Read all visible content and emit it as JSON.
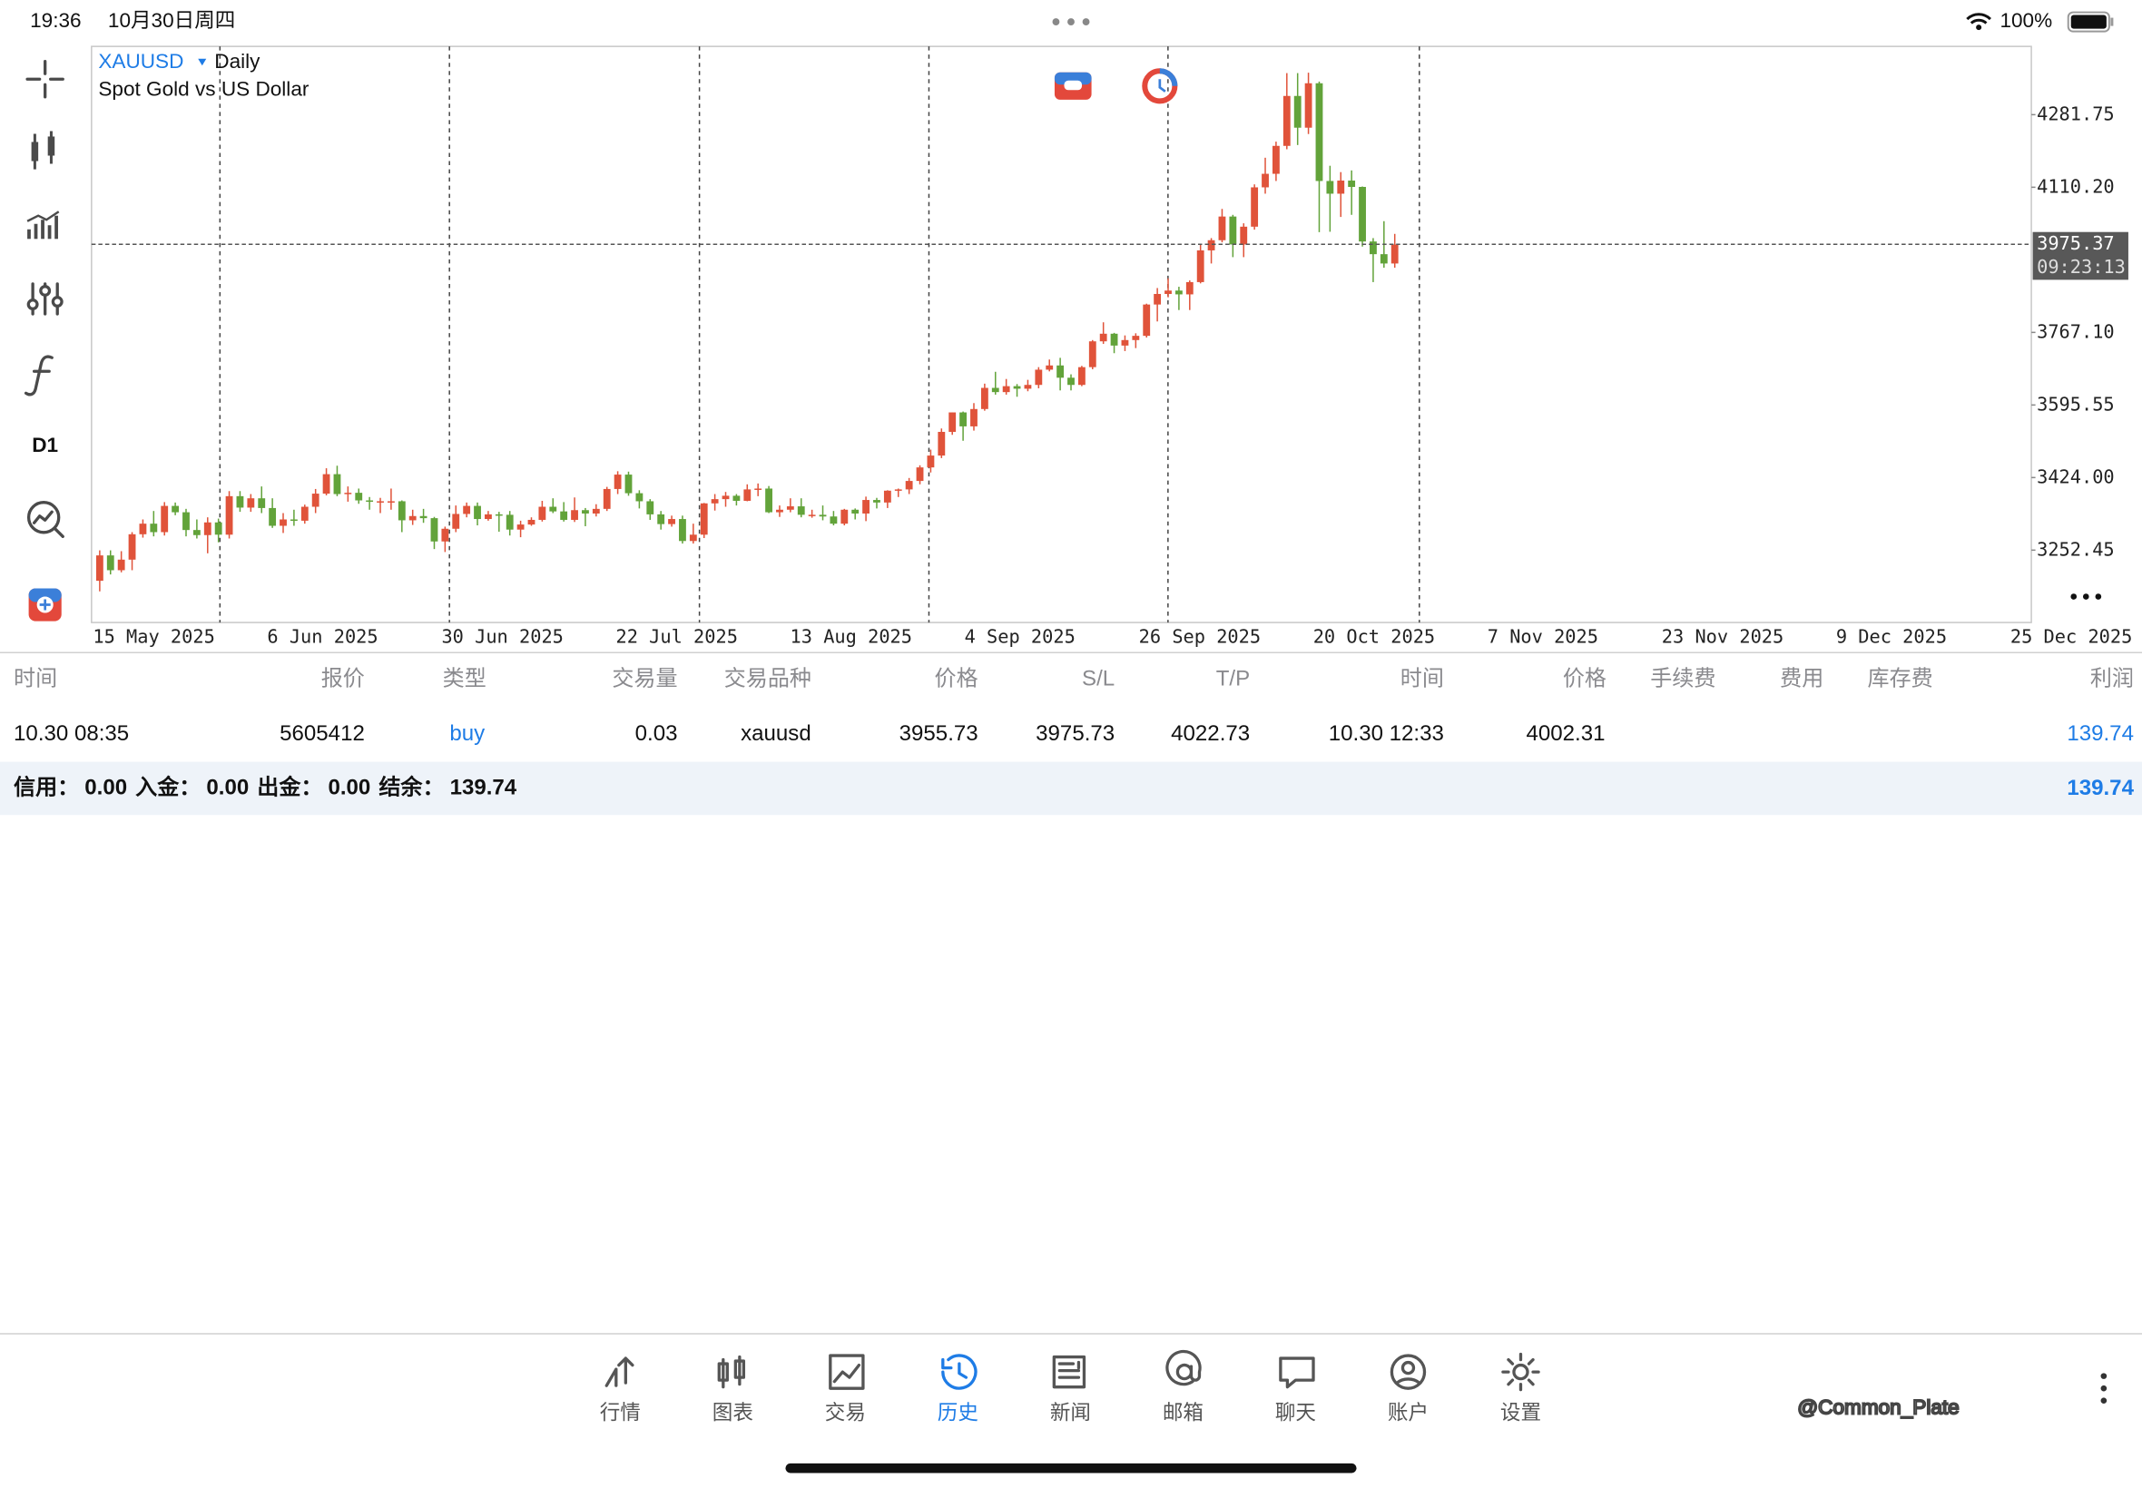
{
  "status_bar": {
    "time": "19:36",
    "date": "10月30日周四",
    "battery": "100%"
  },
  "toolbar": {
    "timeframe": "D1"
  },
  "chart_data": {
    "type": "candlestick",
    "title": "XAUUSD",
    "timeframe": "Daily",
    "subtitle": "Spot Gold vs US Dollar",
    "up_color": "#e0533a",
    "down_color": "#62a33a",
    "current_price": 3975.37,
    "countdown": "09:23:13",
    "ylim": [
      3081.4,
      4443.1
    ],
    "yticks": [
      {
        "value": 3252.45,
        "label": "3252.45"
      },
      {
        "value": 3424,
        "label": "3424.00"
      },
      {
        "value": 3595.55,
        "label": "3595.55"
      },
      {
        "value": 3767.1,
        "label": "3767.10"
      },
      {
        "value": 4110.2,
        "label": "4110.20"
      },
      {
        "value": 4281.75,
        "label": "4281.75"
      }
    ],
    "x_labels": [
      "15 May 2025",
      "6 Jun 2025",
      "30 Jun 2025",
      "22 Jul 2025",
      "13 Aug 2025",
      "4 Sep 2025",
      "26 Sep 2025",
      "20 Oct 2025",
      "7 Nov 2025",
      "23 Nov 2025",
      "9 Dec 2025",
      "25 Dec 2025"
    ],
    "open": [
      3180,
      3240,
      3205,
      3230,
      3290,
      3315,
      3295,
      3357,
      3342,
      3300,
      3288,
      3318,
      3289,
      3380,
      3353,
      3375,
      3352,
      3310,
      3325,
      3322,
      3355,
      3386,
      3432,
      3385,
      3388,
      3370,
      3368,
      3368,
      3368,
      3323,
      3333,
      3328,
      3273,
      3303,
      3338,
      3357,
      3326,
      3337,
      3336,
      3301,
      3313,
      3324,
      3355,
      3344,
      3324,
      3347,
      3339,
      3350,
      3397,
      3431,
      3387,
      3368,
      3337,
      3314,
      3326,
      3274,
      3289,
      3363,
      3373,
      3381,
      3369,
      3396,
      3398,
      3342,
      3348,
      3356,
      3336,
      3336,
      3332,
      3315,
      3348,
      3339,
      3371,
      3365,
      3393,
      3396,
      3416,
      3448,
      3476,
      3532,
      3578,
      3545,
      3586,
      3636,
      3626,
      3640,
      3634,
      3643,
      3679,
      3689,
      3660,
      3643,
      3685,
      3746,
      3764,
      3736,
      3749,
      3759,
      3833,
      3858,
      3866,
      3857,
      3886,
      3961,
      3985,
      4041,
      3975,
      4017,
      4110,
      4142,
      4208,
      4326,
      4251,
      4356,
      4125,
      4095,
      4126,
      4111,
      3982,
      3952,
      3930
    ],
    "high": [
      3252,
      3252,
      3250,
      3295,
      3325,
      3345,
      3366,
      3365,
      3350,
      3325,
      3330,
      3327,
      3392,
      3392,
      3385,
      3403,
      3375,
      3340,
      3348,
      3360,
      3397,
      3446,
      3452,
      3403,
      3398,
      3378,
      3376,
      3398,
      3370,
      3348,
      3350,
      3331,
      3308,
      3358,
      3365,
      3365,
      3345,
      3343,
      3345,
      3322,
      3330,
      3369,
      3375,
      3366,
      3377,
      3352,
      3361,
      3402,
      3439,
      3438,
      3394,
      3373,
      3345,
      3334,
      3334,
      3315,
      3364,
      3385,
      3390,
      3385,
      3408,
      3410,
      3404,
      3358,
      3375,
      3375,
      3348,
      3358,
      3345,
      3350,
      3351,
      3379,
      3376,
      3394,
      3398,
      3423,
      3453,
      3490,
      3540,
      3578,
      3580,
      3600,
      3646,
      3674,
      3657,
      3645,
      3655,
      3685,
      3703,
      3707,
      3668,
      3688,
      3749,
      3791,
      3766,
      3760,
      3765,
      3835,
      3872,
      3895,
      3875,
      3890,
      3977,
      3990,
      4059,
      4045,
      4025,
      4117,
      4180,
      4218,
      4380,
      4380,
      4381,
      4360,
      4161,
      4146,
      4150,
      4112,
      3990,
      4030,
      4000
    ],
    "low": [
      3155,
      3195,
      3200,
      3205,
      3282,
      3285,
      3287,
      3335,
      3285,
      3280,
      3245,
      3271,
      3280,
      3343,
      3343,
      3340,
      3305,
      3293,
      3310,
      3315,
      3340,
      3382,
      3380,
      3367,
      3362,
      3348,
      3340,
      3348,
      3295,
      3312,
      3317,
      3255,
      3248,
      3295,
      3330,
      3311,
      3322,
      3296,
      3287,
      3283,
      3310,
      3320,
      3340,
      3320,
      3319,
      3309,
      3332,
      3345,
      3385,
      3381,
      3351,
      3324,
      3301,
      3308,
      3268,
      3268,
      3281,
      3346,
      3355,
      3358,
      3368,
      3380,
      3340,
      3331,
      3342,
      3330,
      3329,
      3323,
      3311,
      3311,
      3325,
      3321,
      3351,
      3352,
      3378,
      3385,
      3408,
      3436,
      3470,
      3525,
      3511,
      3535,
      3582,
      3620,
      3620,
      3615,
      3628,
      3635,
      3675,
      3630,
      3630,
      3640,
      3680,
      3740,
      3718,
      3723,
      3730,
      3755,
      3793,
      3850,
      3820,
      3820,
      3883,
      3930,
      3980,
      3945,
      3945,
      4010,
      4095,
      4125,
      4200,
      4210,
      4236,
      4004,
      4005,
      4040,
      4045,
      3970,
      3886,
      3920,
      3920
    ],
    "close": [
      3240,
      3205,
      3230,
      3290,
      3315,
      3295,
      3357,
      3342,
      3300,
      3288,
      3318,
      3289,
      3380,
      3353,
      3375,
      3352,
      3310,
      3325,
      3322,
      3355,
      3386,
      3432,
      3385,
      3388,
      3370,
      3368,
      3368,
      3368,
      3323,
      3333,
      3328,
      3273,
      3303,
      3338,
      3357,
      3326,
      3337,
      3336,
      3301,
      3313,
      3324,
      3355,
      3344,
      3324,
      3347,
      3339,
      3350,
      3397,
      3431,
      3387,
      3368,
      3337,
      3314,
      3326,
      3274,
      3289,
      3363,
      3373,
      3381,
      3369,
      3396,
      3398,
      3342,
      3348,
      3356,
      3336,
      3336,
      3332,
      3315,
      3348,
      3339,
      3371,
      3365,
      3393,
      3396,
      3416,
      3448,
      3476,
      3532,
      3578,
      3545,
      3586,
      3636,
      3626,
      3640,
      3634,
      3643,
      3679,
      3689,
      3660,
      3643,
      3685,
      3746,
      3764,
      3736,
      3749,
      3759,
      3833,
      3858,
      3866,
      3857,
      3886,
      3961,
      3985,
      4041,
      3975,
      4017,
      4110,
      4142,
      4208,
      4326,
      4251,
      4356,
      4125,
      4095,
      4126,
      4111,
      3982,
      3952,
      3930,
      3975
    ]
  },
  "table": {
    "headers": [
      "时间",
      "报价",
      "类型",
      "交易量",
      "交易品种",
      "价格",
      "S/L",
      "T/P",
      "时间",
      "价格",
      "手续费",
      "费用",
      "库存费",
      "利润"
    ],
    "row": {
      "open_time": "10.30 08:35",
      "ticket": "5605412",
      "type": "buy",
      "volume": "0.03",
      "symbol": "xauusd",
      "open_price": "3955.73",
      "sl": "3975.73",
      "tp": "4022.73",
      "close_time": "10.30 12:33",
      "close_price": "4002.31",
      "profit": "139.74"
    },
    "summary": {
      "credit_label": "信用：",
      "credit": "0.00",
      "deposit_label": "入金：",
      "deposit": "0.00",
      "withdrawal_label": "出金：",
      "withdrawal": "0.00",
      "balance_label": "结余：",
      "balance": "139.74",
      "total": "139.74"
    }
  },
  "nav": {
    "items": [
      "行情",
      "图表",
      "交易",
      "历史",
      "新闻",
      "邮箱",
      "聊天",
      "账户",
      "设置"
    ],
    "active": 3
  },
  "watermark": "@Common_Plate"
}
